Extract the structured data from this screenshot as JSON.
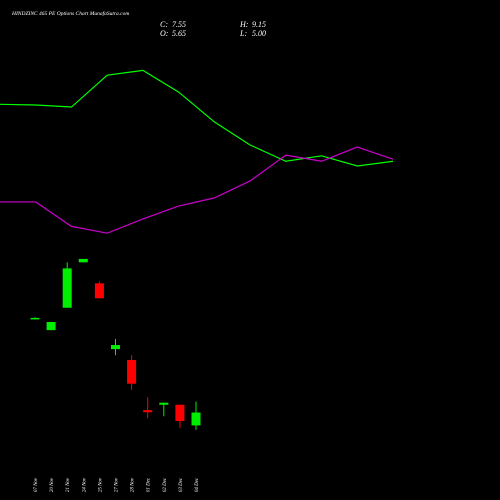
{
  "chart_data": {
    "type": "candlestick",
    "title": "HINDZINC 465 PE Options Chart MunafaSutra.com",
    "summary": {
      "names": [
        "C:",
        "H:",
        "O:",
        "L:"
      ],
      "values": [
        7.55,
        9.15,
        5.65,
        5
      ],
      "value_labels": [
        "7.55",
        "9.15",
        "5.65",
        "5.00"
      ]
    },
    "categories": [
      "07 Nov",
      "20 Nov",
      "21 Nov",
      "24 Nov",
      "25 Nov",
      "27 Nov",
      "28 Nov",
      "01 Dec",
      "02 Dec",
      "03 Dec",
      "04 Dec"
    ],
    "open": [
      21.5,
      19.7,
      23.0,
      29.7,
      26.6,
      16.9,
      15.3,
      7.9,
      8.7,
      8.7,
      5.65
    ],
    "high": [
      21.6,
      20.9,
      29.7,
      30.2,
      26.9,
      18.4,
      16.0,
      9.8,
      9.0,
      8.7,
      9.15
    ],
    "low": [
      21.4,
      19.7,
      23.0,
      29.7,
      24.4,
      16.0,
      10.9,
      6.7,
      7.0,
      5.3,
      5.0
    ],
    "close": [
      21.5,
      20.9,
      28.8,
      30.2,
      24.4,
      17.5,
      11.8,
      7.6,
      9.0,
      6.3,
      7.55
    ],
    "up_color": "#00ee00",
    "down_color": "#ff0000",
    "ylim": [
      3.5,
      58.5
    ],
    "lines": {
      "x": [
        0,
        1,
        2,
        3,
        4,
        5,
        6,
        7,
        8,
        9,
        10,
        11
      ],
      "xlim": [
        0,
        11
      ],
      "series": [
        {
          "color": "#00ff00",
          "values": [
            53.0,
            52.9,
            52.6,
            57.3,
            58.0,
            54.8,
            50.4,
            47.0,
            44.6,
            45.4,
            43.9,
            44.6
          ]
        },
        {
          "color": "#cc00cc",
          "values": [
            38.6,
            38.6,
            35.0,
            34.0,
            36.1,
            38.0,
            39.2,
            41.7,
            45.5,
            44.6,
            46.7,
            44.9
          ]
        }
      ]
    }
  }
}
